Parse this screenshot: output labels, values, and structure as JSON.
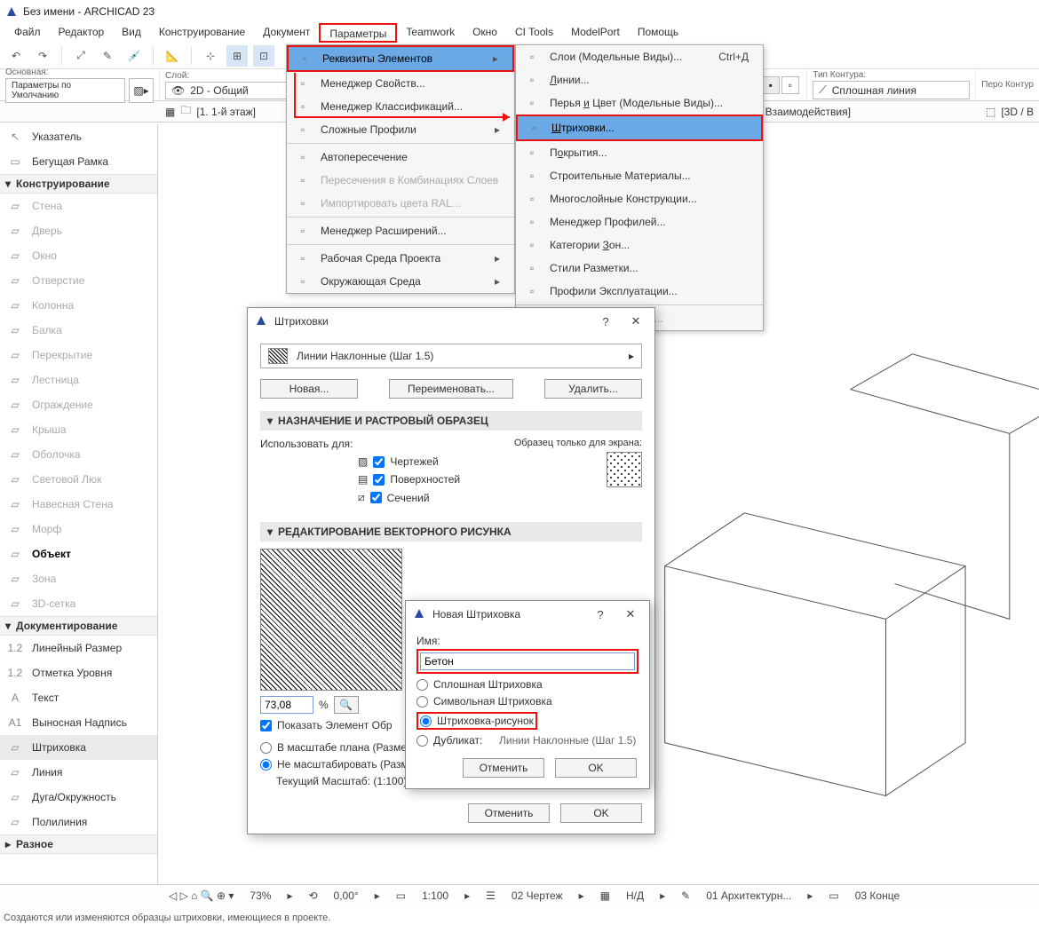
{
  "title": "Без имени - ARCHICAD 23",
  "menu": [
    "Файл",
    "Редактор",
    "Вид",
    "Конструирование",
    "Документ",
    "Параметры",
    "Teamwork",
    "Окно",
    "CI Tools",
    "ModelPort",
    "Помощь"
  ],
  "menu_hi_index": 5,
  "infobar": {
    "main_label": "Основная:",
    "default": "Параметры по Умолчанию",
    "layer_label": "Слой:",
    "layer_value": "2D - Общий",
    "contour_label": "Тип Контура:",
    "contour_value": "Сплошная линия",
    "pen_label": "Перо Контур"
  },
  "tabrow": {
    "tab1": "[1. 1-й этаж]",
    "right": "нтр Взаимодействия]",
    "right2": "[3D / В"
  },
  "dd1": {
    "items": [
      {
        "label": "Реквизиты Элементов",
        "arrow": true,
        "hl": true,
        "hi": true
      },
      {
        "label": "Менеджер Свойств..."
      },
      {
        "label": "Менеджер Классификаций..."
      },
      {
        "label": "Сложные Профили",
        "arrow": true
      },
      {
        "sep": true
      },
      {
        "label": "Автопересечение"
      },
      {
        "label": "Пересечения в Комбинациях Слоев",
        "dis": true
      },
      {
        "label": "Импортировать цвета RAL...",
        "dis": true
      },
      {
        "sep": true
      },
      {
        "label": "Менеджер Расширений..."
      },
      {
        "sep": true
      },
      {
        "label": "Рабочая Среда Проекта",
        "arrow": true
      },
      {
        "label": "Окружающая Среда",
        "arrow": true
      }
    ]
  },
  "dd2": {
    "items": [
      {
        "label": "Слои (Модельные Виды)...",
        "shortcut": "Ctrl+Д"
      },
      {
        "label": "Линии...",
        "u": 0
      },
      {
        "label": "Перья и Цвет (Модельные Виды)...",
        "u": 6
      },
      {
        "label": "Штриховки...",
        "u": 0,
        "hl": true,
        "hi": true
      },
      {
        "label": "Покрытия...",
        "u": 1
      },
      {
        "label": "Строительные Материалы..."
      },
      {
        "label": "Многослойные Конструкции..."
      },
      {
        "label": "Менеджер Профилей..."
      },
      {
        "label": "Категории Зон...",
        "u": 10
      },
      {
        "label": "Стили Разметки..."
      },
      {
        "label": "Профили Эксплуатации..."
      },
      {
        "sep": true
      },
      {
        "label": "Проверить Покрытия...",
        "dis": true
      }
    ]
  },
  "tools": {
    "top": [
      {
        "label": "Указатель",
        "icon": "↖"
      },
      {
        "label": "Бегущая Рамка",
        "icon": "▭"
      }
    ],
    "sec1": "Конструирование",
    "construct": [
      {
        "label": "Стена"
      },
      {
        "label": "Дверь"
      },
      {
        "label": "Окно"
      },
      {
        "label": "Отверстие"
      },
      {
        "label": "Колонна"
      },
      {
        "label": "Балка"
      },
      {
        "label": "Перекрытие"
      },
      {
        "label": "Лестница"
      },
      {
        "label": "Ограждение"
      },
      {
        "label": "Крыша"
      },
      {
        "label": "Оболочка"
      },
      {
        "label": "Световой Люк"
      },
      {
        "label": "Навесная Стена"
      },
      {
        "label": "Морф"
      },
      {
        "label": "Объект",
        "bold": true
      },
      {
        "label": "Зона"
      },
      {
        "label": "3D-сетка"
      }
    ],
    "sec2": "Документирование",
    "doc": [
      {
        "label": "Линейный Размер",
        "pre": "1.2"
      },
      {
        "label": "Отметка Уровня",
        "pre": "1.2"
      },
      {
        "label": "Текст",
        "pre": "A"
      },
      {
        "label": "Выносная Надпись",
        "pre": "A1"
      },
      {
        "label": "Штриховка",
        "sel": true
      },
      {
        "label": "Линия"
      },
      {
        "label": "Дуга/Окружность"
      },
      {
        "label": "Полилиния"
      }
    ],
    "sec3": "Разное"
  },
  "dlg_hatch": {
    "title": "Штриховки",
    "selector": "Линии Наклонные (Шаг 1.5)",
    "btn_new": "Новая...",
    "btn_rename": "Переименовать...",
    "btn_delete": "Удалить...",
    "grp1": "НАЗНАЧЕНИЕ И РАСТРОВЫЙ ОБРАЗЕЦ",
    "use_for": "Использовать для:",
    "chk1": "Чертежей",
    "chk2": "Поверхностей",
    "chk3": "Сечений",
    "sample_label": "Образец только для экрана:",
    "grp2": "РЕДАКТИРОВАНИЕ ВЕКТОРНОГО РИСУНКА",
    "zoom": "73,08",
    "pct": "%",
    "chk_show": "Показать Элемент Обр",
    "r1": "В масштабе плана (Размер Модели)",
    "r2": "Не масштабировать (Размер Бумаги)",
    "scale": "Текущий Масштаб: (1:100)",
    "cancel": "Отменить",
    "ok": "OK"
  },
  "dlg_new": {
    "title": "Новая Штриховка",
    "name_label": "Имя:",
    "name_value": "Бетон",
    "opt1": "Сплошная Штриховка",
    "opt2": "Символьная Штриховка",
    "opt3": "Штриховка-рисунок",
    "opt4": "Дубликат:",
    "dup_of": "Линии Наклонные (Шаг 1.5)",
    "cancel": "Отменить",
    "ok": "OK"
  },
  "status": {
    "zoom": "73%",
    "angle": "0,00°",
    "scale": "1:100",
    "layer": "02 Чертеж",
    "ns": "Н/Д",
    "arch": "01 Архитектурн...",
    "konc": "03 Конце"
  },
  "hint": "Создаются или изменяются образцы штриховки, имеющиеся в проекте."
}
